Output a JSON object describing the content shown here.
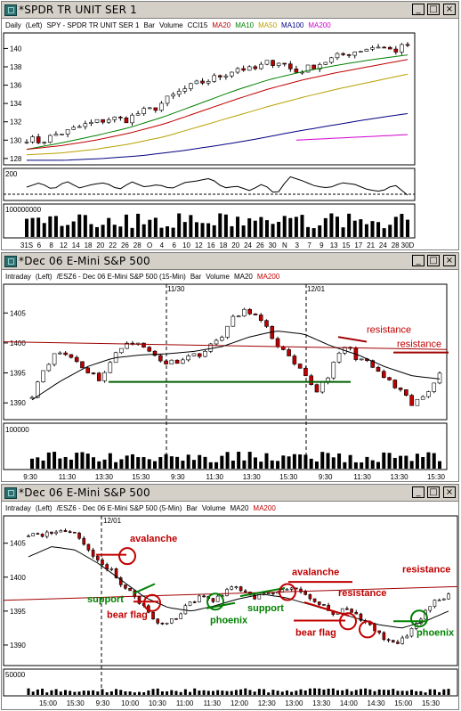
{
  "windows": [
    {
      "title": "*SPDR TR UNIT SER 1",
      "info": [
        {
          "text": "Daily",
          "color": "#000000"
        },
        {
          "text": "(Left)",
          "color": "#000000"
        },
        {
          "text": "SPY - SPDR TR UNIT SER 1",
          "color": "#000000"
        },
        {
          "text": "Bar",
          "color": "#000000"
        },
        {
          "text": "Volume",
          "color": "#000000"
        },
        {
          "text": "CCI15",
          "color": "#000000"
        },
        {
          "text": "MA20",
          "color": "#c00000"
        },
        {
          "text": "MA10",
          "color": "#008000"
        },
        {
          "text": "MA50",
          "color": "#b8a000"
        },
        {
          "text": "MA100",
          "color": "#000080"
        },
        {
          "text": "MA200",
          "color": "#d000d0"
        }
      ],
      "price_ticks": [
        "140",
        "138",
        "136",
        "134",
        "132",
        "130",
        "128"
      ],
      "cci_ticks": [
        "200"
      ],
      "volume_ticks": [
        "100000000"
      ],
      "x_ticks": [
        "31S",
        "6",
        "8",
        "12",
        "14",
        "18",
        "20",
        "22",
        "26",
        "28",
        "O",
        "4",
        "6",
        "10",
        "12",
        "16",
        "18",
        "20",
        "24",
        "26",
        "30",
        "N",
        "3",
        "7",
        "9",
        "13",
        "15",
        "17",
        "21",
        "24",
        "28",
        "30D"
      ]
    },
    {
      "title": "*Dec 06  E-Mini S&P 500",
      "info": [
        {
          "text": "Intraday",
          "color": "#000000"
        },
        {
          "text": "(Left)",
          "color": "#000000"
        },
        {
          "text": "/ESZ6 - Dec 06  E-Mini S&P 500  (15-Min)",
          "color": "#000000"
        },
        {
          "text": "Bar",
          "color": "#000000"
        },
        {
          "text": "Volume",
          "color": "#000000"
        },
        {
          "text": "MA20",
          "color": "#000000"
        },
        {
          "text": "MA200",
          "color": "#c00000"
        }
      ],
      "date_markers": [
        "11/30",
        "12/01"
      ],
      "price_ticks": [
        "1405",
        "1400",
        "1395",
        "1390"
      ],
      "volume_ticks": [
        "100000"
      ],
      "x_ticks": [
        "9:30",
        "11:30",
        "13:30",
        "15:30",
        "9:30",
        "11:30",
        "13:30",
        "15:30",
        "9:30",
        "11:30",
        "13:30",
        "15:30"
      ],
      "annotations": [
        "resistance",
        "resistance"
      ]
    },
    {
      "title": "*Dec 06  E-Mini S&P 500",
      "info": [
        {
          "text": "Intraday",
          "color": "#000000"
        },
        {
          "text": "(Left)",
          "color": "#000000"
        },
        {
          "text": "/ESZ6 - Dec 06  E-Mini S&P 500  (5-Min)",
          "color": "#000000"
        },
        {
          "text": "Bar",
          "color": "#000000"
        },
        {
          "text": "Volume",
          "color": "#000000"
        },
        {
          "text": "MA20",
          "color": "#000000"
        },
        {
          "text": "MA200",
          "color": "#c00000"
        }
      ],
      "date_markers": [
        "12/01"
      ],
      "price_ticks": [
        "1405",
        "1400",
        "1395",
        "1390"
      ],
      "volume_ticks": [
        "50000"
      ],
      "x_ticks": [
        "15:00",
        "15:30",
        "9:30",
        "10:00",
        "10:30",
        "11:00",
        "11:30",
        "12:00",
        "12:30",
        "13:00",
        "13:30",
        "14:00",
        "14:30",
        "15:00",
        "15:30"
      ],
      "annotations": {
        "avalanche1": "avalanche",
        "support1": "support",
        "bearflag1": "bear flag",
        "phoenix1": "phoenix",
        "support2": "support",
        "avalanche2": "avalanche",
        "resistance1": "resistance",
        "resistance2": "resistance",
        "bearflag2": "bear flag",
        "phoenix2": "phoenix"
      }
    }
  ],
  "window_buttons": {
    "minimize": "_",
    "maximize": "□",
    "close": "×"
  },
  "colors": {
    "annotation_red": "#c00000",
    "annotation_green": "#008000",
    "ma200_red": "#a00000",
    "bar_black": "#000000",
    "candle_red": "#c00000"
  }
}
